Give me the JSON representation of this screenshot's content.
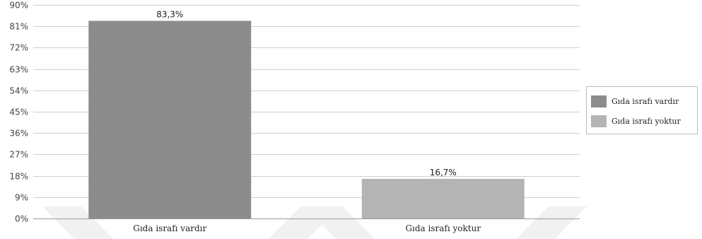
{
  "chart_data": {
    "type": "bar",
    "title": "",
    "xlabel": "",
    "ylabel": "",
    "categories": [
      "Gıda israfı vardır",
      "Gıda israfı yoktur"
    ],
    "values": [
      83.3,
      16.7
    ],
    "value_labels": [
      "83,3%",
      "16,7%"
    ],
    "colors": [
      "#8c8c8c",
      "#b4b4b4"
    ],
    "ylim": [
      0,
      90
    ],
    "yticks": [
      0,
      9,
      18,
      27,
      36,
      45,
      54,
      63,
      72,
      81,
      90
    ],
    "ytick_labels": [
      "0%",
      "9%",
      "18%",
      "27%",
      "36%",
      "45%",
      "54%",
      "63%",
      "72%",
      "81%",
      "90%"
    ],
    "grid": true,
    "legend": {
      "position": "right",
      "entries": [
        "Gıda israfı vardır",
        "Gıda israfı yoktur"
      ]
    }
  }
}
